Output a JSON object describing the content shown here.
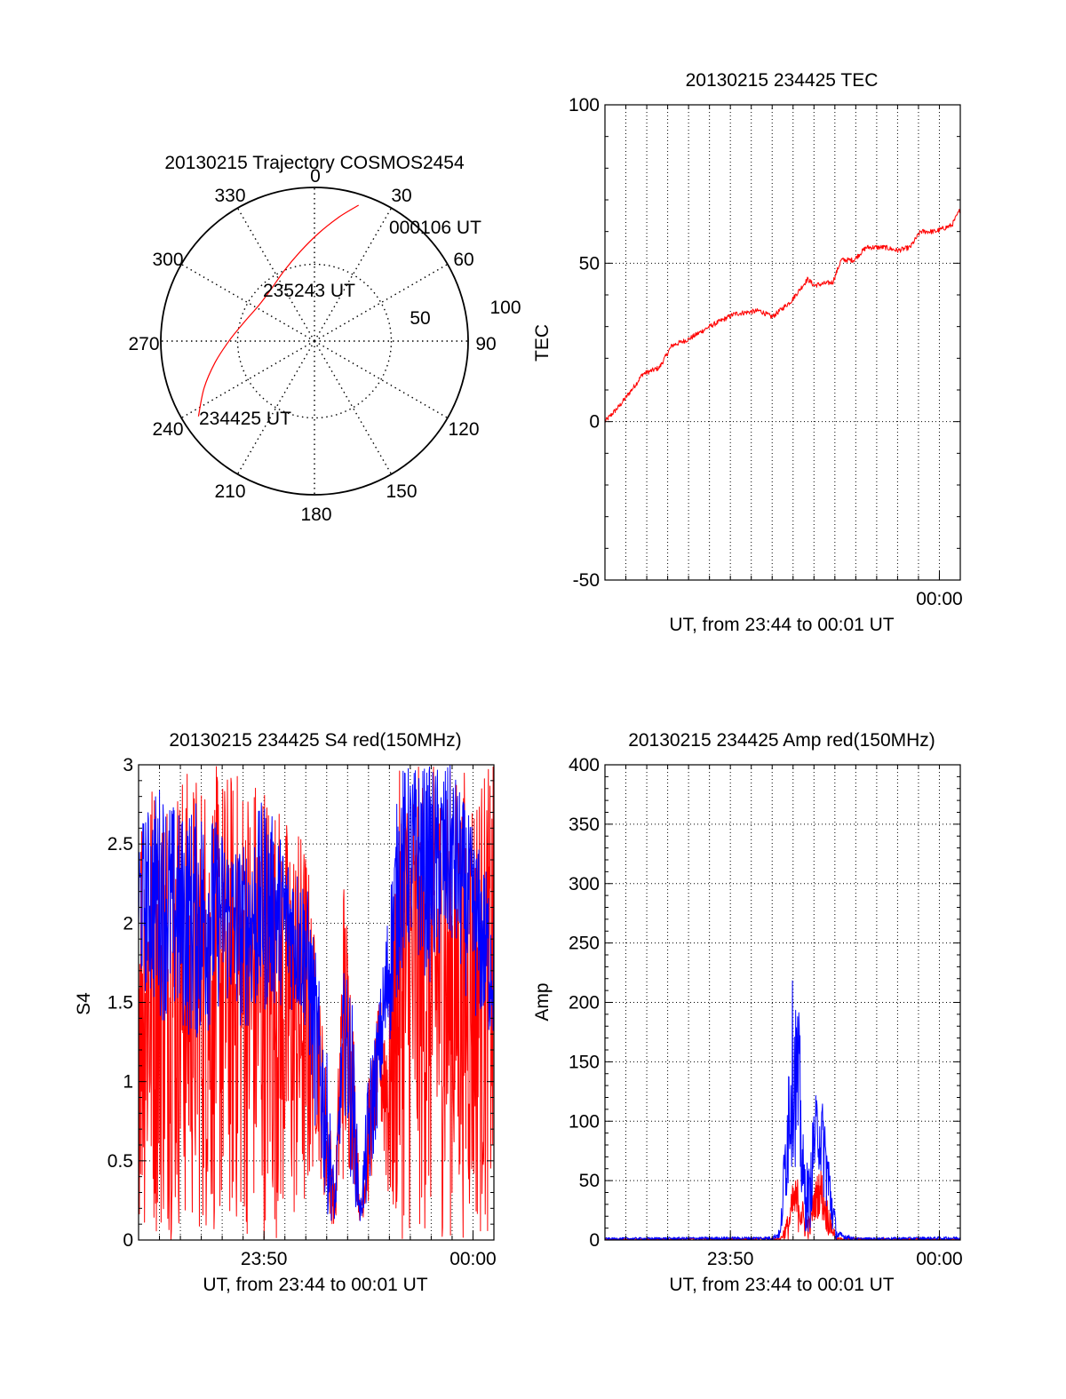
{
  "colors": {
    "red": "#ff0000",
    "blue": "#0000ff",
    "axis": "#000000",
    "grid": "#000000"
  },
  "chart_data": [
    {
      "id": "polar",
      "type": "polar-trajectory",
      "title": "20130215 Trajectory COSMOS2454",
      "azimuth_labels": [
        "0",
        "30",
        "60",
        "90",
        "120",
        "150",
        "180",
        "210",
        "240",
        "270",
        "300",
        "330"
      ],
      "radial_labels": [
        "50",
        "100"
      ],
      "rlim": [
        0,
        100
      ],
      "grid": true,
      "annotations": [
        "000106 UT",
        "235243 UT",
        "234425 UT"
      ],
      "trajectory": {
        "color": "#ff0000",
        "points": [
          {
            "az": 237,
            "r": 90
          },
          {
            "az": 247,
            "r": 78
          },
          {
            "az": 258,
            "r": 66
          },
          {
            "az": 271,
            "r": 55
          },
          {
            "az": 286,
            "r": 47
          },
          {
            "az": 303,
            "r": 43
          },
          {
            "az": 320,
            "r": 44
          },
          {
            "az": 337,
            "r": 50
          },
          {
            "az": 351,
            "r": 59
          },
          {
            "az": 2,
            "r": 70
          },
          {
            "az": 11,
            "r": 82
          },
          {
            "az": 18,
            "r": 93
          }
        ]
      }
    },
    {
      "id": "tec",
      "type": "line",
      "title": "20130215 234425 TEC",
      "ylabel": "TEC",
      "xlabel": "UT, from 23:44 to 00:01 UT",
      "ylim": [
        -50,
        100
      ],
      "yticks": [
        -50,
        0,
        50,
        100
      ],
      "xticks": [
        {
          "t": 16,
          "label": "00:00"
        }
      ],
      "xrange_minutes": [
        0,
        17
      ],
      "note_time": "minutes after 23:44",
      "grid": true,
      "series": [
        {
          "color": "#ff0000",
          "x": [
            0.0,
            0.7,
            1.5,
            1.8,
            2.6,
            3.2,
            4.0,
            5.0,
            6.2,
            7.4,
            8.0,
            8.9,
            9.7,
            10.0,
            10.9,
            11.3,
            11.9,
            12.5,
            13.4,
            14.0,
            14.6,
            15.1,
            15.8,
            16.6,
            17.0
          ],
          "y": [
            0,
            5,
            12,
            15,
            17,
            24,
            26,
            30,
            34,
            35,
            33,
            38,
            45,
            43,
            44,
            51,
            51,
            55,
            55,
            54,
            55,
            60,
            60,
            62,
            67
          ]
        }
      ]
    },
    {
      "id": "s4",
      "type": "line",
      "title": "20130215 234425 S4 red(150MHz)",
      "ylabel": "S4",
      "xlabel": "UT, from 23:44 to 00:01 UT",
      "ylim": [
        0,
        3
      ],
      "yticks": [
        0,
        0.5,
        1,
        1.5,
        2,
        2.5,
        3
      ],
      "ytick_labels": [
        "0",
        "0.5",
        "1",
        "1.5",
        "2",
        "2.5",
        "3"
      ],
      "xticks": [
        {
          "t": 6,
          "label": "23:50"
        },
        {
          "t": 16,
          "label": "00:00"
        }
      ],
      "xrange_minutes": [
        0,
        17
      ],
      "grid": true,
      "series": [
        {
          "color": "#ff0000",
          "envelope": [
            [
              0.0,
              0.0,
              3.0
            ],
            [
              1.0,
              0.0,
              3.0
            ],
            [
              2.0,
              0.0,
              3.0
            ],
            [
              3.0,
              0.0,
              3.0
            ],
            [
              4.0,
              0.0,
              3.0
            ],
            [
              5.0,
              0.0,
              3.0
            ],
            [
              6.0,
              0.0,
              3.0
            ],
            [
              7.0,
              0.0,
              2.7
            ],
            [
              8.0,
              0.0,
              2.6
            ],
            [
              8.5,
              0.6,
              1.8
            ],
            [
              9.0,
              0.1,
              1.1
            ],
            [
              9.4,
              0.1,
              0.3
            ],
            [
              9.8,
              0.3,
              2.4
            ],
            [
              10.2,
              0.4,
              1.7
            ],
            [
              10.6,
              0.1,
              0.2
            ],
            [
              11.0,
              0.2,
              1.0
            ],
            [
              11.5,
              0.8,
              1.5
            ],
            [
              12.0,
              0.0,
              1.7
            ],
            [
              12.5,
              0.0,
              3.0
            ],
            [
              13.0,
              0.0,
              3.0
            ],
            [
              14.0,
              0.0,
              3.0
            ],
            [
              15.0,
              0.0,
              3.0
            ],
            [
              16.0,
              0.0,
              3.0
            ],
            [
              17.0,
              0.0,
              3.0
            ]
          ]
        },
        {
          "color": "#0000ff",
          "envelope": [
            [
              0.0,
              1.6,
              2.6
            ],
            [
              1.0,
              1.4,
              2.9
            ],
            [
              2.0,
              1.3,
              2.7
            ],
            [
              3.0,
              1.2,
              2.8
            ],
            [
              4.0,
              1.5,
              2.6
            ],
            [
              5.0,
              1.3,
              2.5
            ],
            [
              6.0,
              1.4,
              2.8
            ],
            [
              7.0,
              1.5,
              2.5
            ],
            [
              8.0,
              1.3,
              2.3
            ],
            [
              8.5,
              0.6,
              1.8
            ],
            [
              9.0,
              0.15,
              1.2
            ],
            [
              9.4,
              0.1,
              0.3
            ],
            [
              9.8,
              0.9,
              1.7
            ],
            [
              10.2,
              0.3,
              1.6
            ],
            [
              10.6,
              0.1,
              0.2
            ],
            [
              11.0,
              0.2,
              1.1
            ],
            [
              11.5,
              0.8,
              1.5
            ],
            [
              12.0,
              1.2,
              2.2
            ],
            [
              12.5,
              1.6,
              3.0
            ],
            [
              13.0,
              1.8,
              3.0
            ],
            [
              14.0,
              1.6,
              3.0
            ],
            [
              15.0,
              1.8,
              3.0
            ],
            [
              16.0,
              1.4,
              2.6
            ],
            [
              17.0,
              1.2,
              2.2
            ]
          ]
        }
      ]
    },
    {
      "id": "amp",
      "type": "line",
      "title": "20130215 234425 Amp red(150MHz)",
      "ylabel": "Amp",
      "xlabel": "UT, from 23:44 to 00:01 UT",
      "ylim": [
        0,
        400
      ],
      "yticks": [
        0,
        50,
        100,
        150,
        200,
        250,
        300,
        350,
        400
      ],
      "xticks": [
        {
          "t": 6,
          "label": "23:50"
        },
        {
          "t": 16,
          "label": "00:00"
        }
      ],
      "xrange_minutes": [
        0,
        17
      ],
      "grid": true,
      "series": [
        {
          "color": "#ff0000",
          "envelope": [
            [
              0.0,
              0,
              1
            ],
            [
              8.4,
              0,
              2
            ],
            [
              8.8,
              0,
              25
            ],
            [
              9.0,
              10,
              50
            ],
            [
              9.3,
              5,
              55
            ],
            [
              9.5,
              0,
              30
            ],
            [
              9.8,
              0,
              20
            ],
            [
              10.0,
              15,
              45
            ],
            [
              10.3,
              20,
              65
            ],
            [
              10.6,
              5,
              40
            ],
            [
              10.9,
              0,
              15
            ],
            [
              11.1,
              0,
              2
            ],
            [
              17.0,
              0,
              1
            ]
          ]
        },
        {
          "color": "#0000ff",
          "envelope": [
            [
              0.0,
              0,
              2
            ],
            [
              8.0,
              0,
              3
            ],
            [
              8.4,
              1,
              10
            ],
            [
              8.8,
              40,
              180
            ],
            [
              9.0,
              70,
              225
            ],
            [
              9.3,
              40,
              190
            ],
            [
              9.5,
              5,
              80
            ],
            [
              9.8,
              5,
              60
            ],
            [
              10.0,
              45,
              120
            ],
            [
              10.2,
              60,
              125
            ],
            [
              10.5,
              30,
              115
            ],
            [
              10.8,
              5,
              60
            ],
            [
              11.1,
              0,
              8
            ],
            [
              12.0,
              0,
              2
            ],
            [
              17.0,
              0,
              3
            ]
          ]
        }
      ]
    }
  ]
}
